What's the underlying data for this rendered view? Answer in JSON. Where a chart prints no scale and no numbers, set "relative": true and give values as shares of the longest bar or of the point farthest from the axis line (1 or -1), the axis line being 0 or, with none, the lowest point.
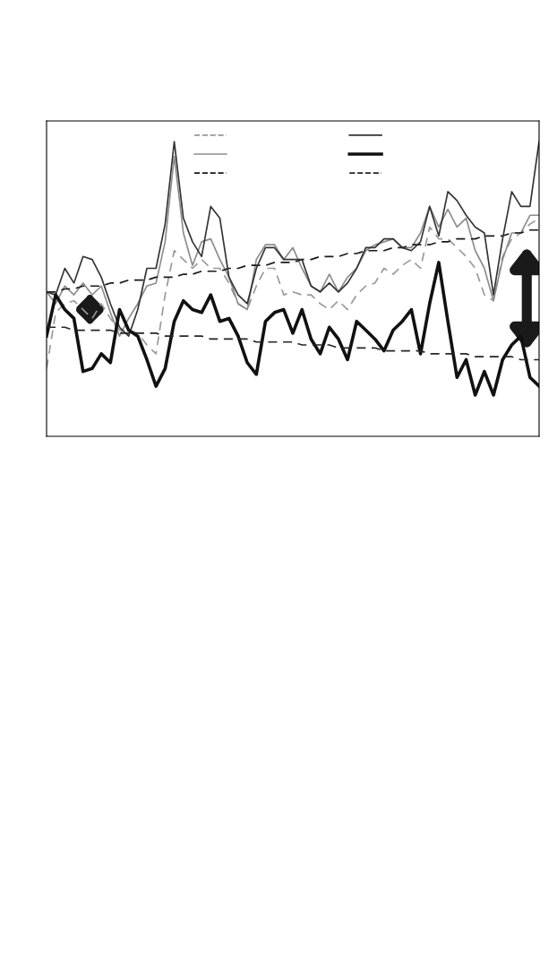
{
  "chart_data": {
    "type": "line",
    "relative": true,
    "grid": false,
    "categories": [
      null,
      null,
      null,
      null,
      null,
      null,
      null,
      null,
      null,
      null,
      null,
      null,
      null,
      null,
      null,
      null,
      null,
      null,
      null,
      null,
      null,
      null,
      null,
      null,
      null,
      null,
      null,
      null,
      null,
      null,
      null,
      null,
      null,
      null,
      null,
      null,
      null,
      null,
      null,
      null,
      null,
      null,
      null,
      null,
      null,
      null,
      null,
      null,
      null,
      null,
      null,
      null,
      null,
      null,
      null
    ],
    "series": [
      {
        "color": "#999999",
        "line_style": "dashed",
        "values": [
          0.23,
          0.42,
          0.45,
          0.46,
          0.43,
          0.4,
          0.45,
          0.4,
          0.36,
          0.36,
          0.35,
          0.31,
          0.28,
          0.48,
          0.63,
          0.6,
          0.57,
          0.6,
          0.57,
          0.57,
          0.52,
          0.45,
          0.43,
          0.51,
          0.57,
          0.57,
          0.48,
          0.49,
          0.48,
          0.48,
          0.45,
          0.43,
          0.46,
          0.43,
          0.48,
          0.51,
          0.52,
          0.57,
          0.55,
          0.58,
          0.6,
          0.57,
          0.71,
          0.67,
          0.67,
          0.64,
          0.61,
          0.57,
          0.48,
          0.46,
          0.61,
          0.67,
          0.69,
          0.72,
          0.74
        ]
      },
      {
        "color": "#8c8c8c",
        "line_style": "solid",
        "values": [
          0.49,
          0.45,
          0.51,
          0.48,
          0.52,
          0.48,
          0.51,
          0.42,
          0.34,
          0.4,
          0.45,
          0.51,
          0.52,
          0.66,
          0.95,
          0.69,
          0.58,
          0.66,
          0.67,
          0.6,
          0.54,
          0.45,
          0.43,
          0.6,
          0.65,
          0.65,
          0.6,
          0.64,
          0.57,
          0.51,
          0.49,
          0.55,
          0.49,
          0.54,
          0.57,
          0.63,
          0.65,
          0.66,
          0.67,
          0.64,
          0.64,
          0.69,
          0.78,
          0.71,
          0.77,
          0.71,
          0.74,
          0.63,
          0.57,
          0.46,
          0.6,
          0.69,
          0.69,
          0.75,
          0.75
        ]
      },
      {
        "color": "#1a1a1a",
        "line_style": "dashed",
        "values": [
          0.49,
          0.49,
          0.5,
          0.5,
          0.51,
          0.51,
          0.51,
          0.52,
          0.52,
          0.53,
          0.53,
          0.53,
          0.54,
          0.54,
          0.54,
          0.55,
          0.55,
          0.56,
          0.56,
          0.56,
          0.57,
          0.57,
          0.58,
          0.58,
          0.58,
          0.59,
          0.59,
          0.59,
          0.6,
          0.6,
          0.61,
          0.61,
          0.61,
          0.62,
          0.62,
          0.63,
          0.63,
          0.63,
          0.64,
          0.64,
          0.65,
          0.65,
          0.65,
          0.66,
          0.66,
          0.67,
          0.67,
          0.67,
          0.68,
          0.68,
          0.68,
          0.69,
          0.69,
          0.7,
          0.7
        ]
      },
      {
        "color": "#333333",
        "line_style": "solid",
        "values": [
          0.49,
          0.48,
          0.57,
          0.52,
          0.61,
          0.6,
          0.54,
          0.45,
          0.37,
          0.34,
          0.43,
          0.57,
          0.57,
          0.72,
          1,
          0.74,
          0.66,
          0.61,
          0.78,
          0.74,
          0.54,
          0.48,
          0.45,
          0.57,
          0.64,
          0.64,
          0.6,
          0.6,
          0.6,
          0.51,
          0.49,
          0.52,
          0.49,
          0.52,
          0.57,
          0.64,
          0.64,
          0.67,
          0.67,
          0.64,
          0.63,
          0.66,
          0.78,
          0.68,
          0.83,
          0.8,
          0.75,
          0.71,
          0.69,
          0.48,
          0.67,
          0.83,
          0.78,
          0.78,
          1
        ]
      },
      {
        "color": "#111111",
        "line_style": "solid",
        "values": [
          0.34,
          0.48,
          0.43,
          0.4,
          0.22,
          0.23,
          0.28,
          0.25,
          0.43,
          0.36,
          0.34,
          0.26,
          0.17,
          0.23,
          0.39,
          0.46,
          0.43,
          0.42,
          0.48,
          0.39,
          0.4,
          0.34,
          0.25,
          0.21,
          0.39,
          0.42,
          0.43,
          0.35,
          0.43,
          0.33,
          0.28,
          0.37,
          0.33,
          0.26,
          0.39,
          0.36,
          0.33,
          0.29,
          0.36,
          0.39,
          0.43,
          0.28,
          0.45,
          0.59,
          0.39,
          0.2,
          0.26,
          0.14,
          0.22,
          0.14,
          0.26,
          0.31,
          0.34,
          0.2,
          0.17
        ]
      },
      {
        "color": "#262626",
        "line_style": "dashed",
        "values": [
          0.37,
          0.37,
          0.37,
          0.36,
          0.36,
          0.36,
          0.36,
          0.36,
          0.35,
          0.35,
          0.35,
          0.35,
          0.35,
          0.34,
          0.34,
          0.34,
          0.34,
          0.34,
          0.33,
          0.33,
          0.33,
          0.33,
          0.33,
          0.32,
          0.32,
          0.32,
          0.32,
          0.32,
          0.31,
          0.31,
          0.31,
          0.31,
          0.3,
          0.3,
          0.3,
          0.3,
          0.3,
          0.29,
          0.29,
          0.29,
          0.29,
          0.29,
          0.28,
          0.28,
          0.28,
          0.28,
          0.28,
          0.27,
          0.27,
          0.27,
          0.27,
          0.27,
          0.26,
          0.26,
          0.26
        ]
      }
    ]
  }
}
